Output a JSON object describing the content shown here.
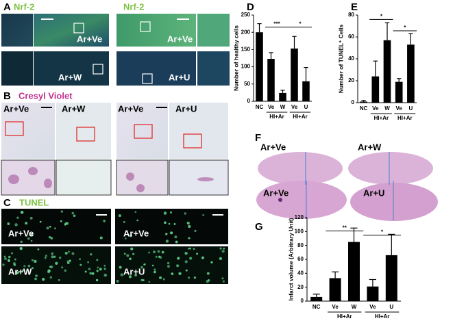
{
  "panel_letters": [
    "A",
    "B",
    "C",
    "D",
    "E",
    "F",
    "G"
  ],
  "panel_a": {
    "stains": [
      "Nrf-2",
      "Nrf-2"
    ],
    "labels": [
      "Ar+Ve",
      "Ar+Ve",
      "Ar+W",
      "Ar+U"
    ]
  },
  "panel_b": {
    "stain": "Cresyl Violet",
    "labels": [
      "Ar+Ve",
      "Ar+W",
      "Ar+Ve",
      "Ar+U"
    ]
  },
  "panel_c": {
    "stain": "TUNEL",
    "labels": [
      "Ar+Ve",
      "Ar+Ve",
      "Ar+W",
      "Ar+U"
    ]
  },
  "panel_f": {
    "labels": [
      "Ar+Ve",
      "Ar+W",
      "Ar+Ve",
      "Ar+U"
    ]
  },
  "chart_data": [
    {
      "type": "bar",
      "y_label": "Number of healthy cells",
      "categories": [
        "NC",
        "Ve",
        "W",
        "Ve",
        "U"
      ],
      "values": [
        200,
        123,
        24,
        153,
        58
      ],
      "errors": [
        25,
        18,
        8,
        35,
        40
      ],
      "color": "#000000",
      "ylim": [
        0,
        250
      ],
      "yticks": [
        0,
        50,
        100,
        150,
        200,
        250
      ],
      "group_labels": [
        "HI+Ar",
        "HI+Ar"
      ],
      "annotations": [
        "***",
        "*"
      ]
    },
    {
      "type": "bar",
      "y_label": "Number of TUNEL⁺ Cells",
      "categories": [
        "NC",
        "Ve",
        "W",
        "Ve",
        "U"
      ],
      "values": [
        1,
        24,
        57,
        19,
        53
      ],
      "errors": [
        1,
        14,
        16,
        3,
        10
      ],
      "color": "#000000",
      "ylim": [
        0,
        80
      ],
      "yticks": [
        0,
        20,
        40,
        60,
        80
      ],
      "group_labels": [
        "HI+Ar",
        "HI+Ar"
      ],
      "annotations": [
        "*",
        "*"
      ]
    },
    {
      "type": "bar",
      "y_label": "Infarct volume (Arbitrary Unit)",
      "categories": [
        "NC",
        "Ve",
        "W",
        "Ve",
        "U"
      ],
      "values": [
        6,
        33,
        85,
        21,
        66
      ],
      "errors": [
        4,
        9,
        20,
        10,
        30
      ],
      "color": "#000000",
      "ylim": [
        0,
        120
      ],
      "yticks": [
        0,
        20,
        40,
        60,
        80,
        100,
        120
      ],
      "group_labels": [
        "HI+Ar",
        "HI+Ar"
      ],
      "annotations": [
        "**",
        "*"
      ]
    }
  ]
}
